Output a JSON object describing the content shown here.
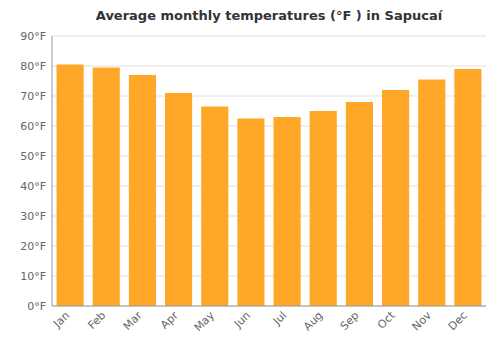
{
  "chart_data": {
    "type": "bar",
    "title": "Average monthly temperatures (°F ) in Sapucaí",
    "categories": [
      "Jan",
      "Feb",
      "Mar",
      "Apr",
      "May",
      "Jun",
      "Jul",
      "Aug",
      "Sep",
      "Oct",
      "Nov",
      "Dec"
    ],
    "values": [
      80.5,
      79.5,
      77.0,
      71.0,
      66.5,
      62.5,
      63.0,
      65.0,
      68.0,
      72.0,
      75.5,
      79.0
    ],
    "color": "#FFA726",
    "ylim": [
      0,
      90
    ],
    "yticks": [
      {
        "value": 0,
        "label": "0°F"
      },
      {
        "value": 10,
        "label": "10°F"
      },
      {
        "value": 20,
        "label": "20°F"
      },
      {
        "value": 30,
        "label": "30°F"
      },
      {
        "value": 40,
        "label": "40°F"
      },
      {
        "value": 50,
        "label": "50°F"
      },
      {
        "value": 60,
        "label": "60°F"
      },
      {
        "value": 70,
        "label": "70°F"
      },
      {
        "value": 80,
        "label": "80°F"
      },
      {
        "value": 90,
        "label": "90°F"
      }
    ],
    "grid": true
  }
}
